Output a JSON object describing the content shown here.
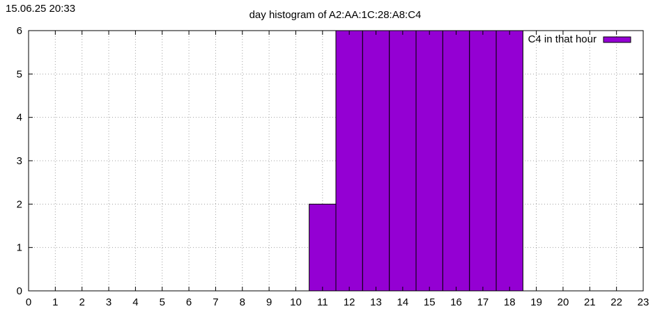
{
  "timestamp": "15.06.25 20:33",
  "chart_data": {
    "type": "bar",
    "title": "day histogram of A2:AA:1C:28:A8:C4",
    "xlabel": "",
    "ylabel": "",
    "xlim": [
      0,
      23
    ],
    "ylim": [
      0,
      6
    ],
    "xticks": [
      0,
      1,
      2,
      3,
      4,
      5,
      6,
      7,
      8,
      9,
      10,
      11,
      12,
      13,
      14,
      15,
      16,
      17,
      18,
      19,
      20,
      21,
      22,
      23
    ],
    "yticks": [
      0,
      1,
      2,
      3,
      4,
      5,
      6
    ],
    "grid": true,
    "legend_position": "top-right",
    "series": [
      {
        "name": "C4 in that hour",
        "color": "#9400d3",
        "x": [
          11,
          12,
          13,
          14,
          15,
          16,
          17,
          18
        ],
        "values": [
          2,
          6,
          6,
          6,
          6,
          6,
          6,
          6
        ]
      }
    ]
  }
}
